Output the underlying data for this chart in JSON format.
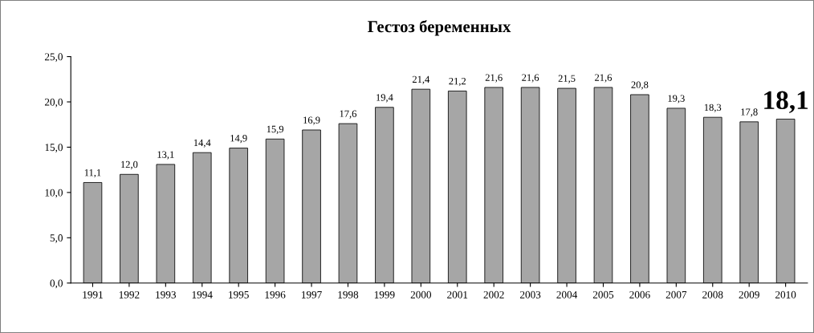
{
  "chart_data": {
    "type": "bar",
    "title": "Гестоз беременных",
    "categories": [
      "1991",
      "1992",
      "1993",
      "1994",
      "1995",
      "1996",
      "1997",
      "1998",
      "1999",
      "2000",
      "2001",
      "2002",
      "2003",
      "2004",
      "2005",
      "2006",
      "2007",
      "2008",
      "2009",
      "2010"
    ],
    "values": [
      11.1,
      12.0,
      13.1,
      14.4,
      14.9,
      15.9,
      16.9,
      17.6,
      19.4,
      21.4,
      21.2,
      21.6,
      21.6,
      21.5,
      21.6,
      20.8,
      19.3,
      18.3,
      17.8,
      18.1
    ],
    "value_labels": [
      "11,1",
      "12,0",
      "13,1",
      "14,4",
      "14,9",
      "15,9",
      "16,9",
      "17,6",
      "19,4",
      "21,4",
      "21,2",
      "21,6",
      "21,6",
      "21,5",
      "21,6",
      "20,8",
      "19,3",
      "18,3",
      "17,8",
      "18,1"
    ],
    "color": "#a6a6a6",
    "ylim": [
      0,
      25
    ],
    "yticks": [
      {
        "value": 0,
        "label": "0,0"
      },
      {
        "value": 5,
        "label": "5,0"
      },
      {
        "value": 10,
        "label": "10,0"
      },
      {
        "value": 15,
        "label": "15,0"
      },
      {
        "value": 20,
        "label": "20,0"
      },
      {
        "value": 25,
        "label": "25,0"
      }
    ],
    "grid": false,
    "legend": false
  }
}
